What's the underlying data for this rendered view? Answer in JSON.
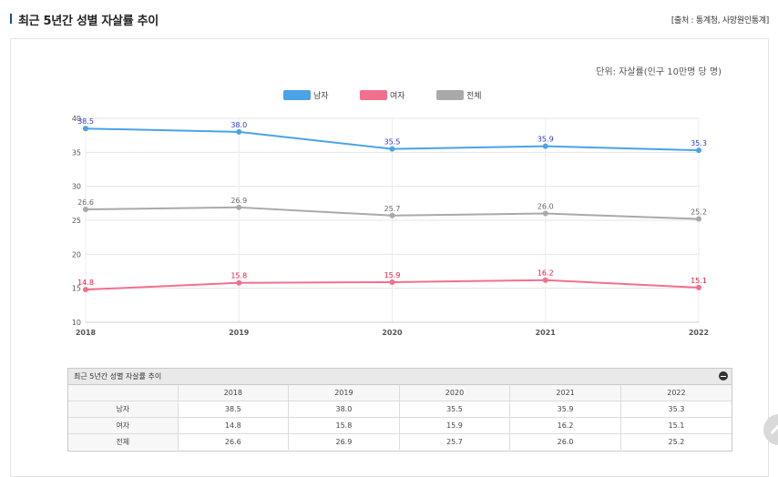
{
  "header": {
    "title": "최근 5년간 성별 자살률 추이",
    "source": "[출처 : 통계청, 사망원인통계]"
  },
  "chart": {
    "unit": "단위: 자살률(인구 10만명 당 명)"
  },
  "chart_data": {
    "type": "line",
    "categories": [
      "2018",
      "2019",
      "2020",
      "2021",
      "2022"
    ],
    "series": [
      {
        "name": "남자",
        "values": [
          38.5,
          38.0,
          35.5,
          35.9,
          35.3
        ],
        "color": "#4aa3e6",
        "label_color": "#2a3ccf"
      },
      {
        "name": "여자",
        "values": [
          14.8,
          15.8,
          15.9,
          16.2,
          15.1
        ],
        "color": "#f2708e",
        "label_color": "#e0193f"
      },
      {
        "name": "전체",
        "values": [
          26.6,
          26.9,
          25.7,
          26.0,
          25.2
        ],
        "color": "#a9a9a9",
        "label_color": "#666666"
      }
    ],
    "ylim": [
      10,
      40
    ],
    "yticks": [
      "10",
      "15",
      "20",
      "25",
      "30",
      "35",
      "40"
    ],
    "grid": true,
    "legend": "top-center"
  },
  "table": {
    "title": "최근 5년간 성별 자살률 추이",
    "columns": [
      "",
      "2018",
      "2019",
      "2020",
      "2021",
      "2022"
    ],
    "rows": [
      {
        "label": "남자",
        "values": [
          "38.5",
          "38.0",
          "35.5",
          "35.9",
          "35.3"
        ]
      },
      {
        "label": "여자",
        "values": [
          "14.8",
          "15.8",
          "15.9",
          "16.2",
          "15.1"
        ]
      },
      {
        "label": "전체",
        "values": [
          "26.6",
          "26.9",
          "25.7",
          "26.0",
          "25.2"
        ]
      }
    ]
  }
}
